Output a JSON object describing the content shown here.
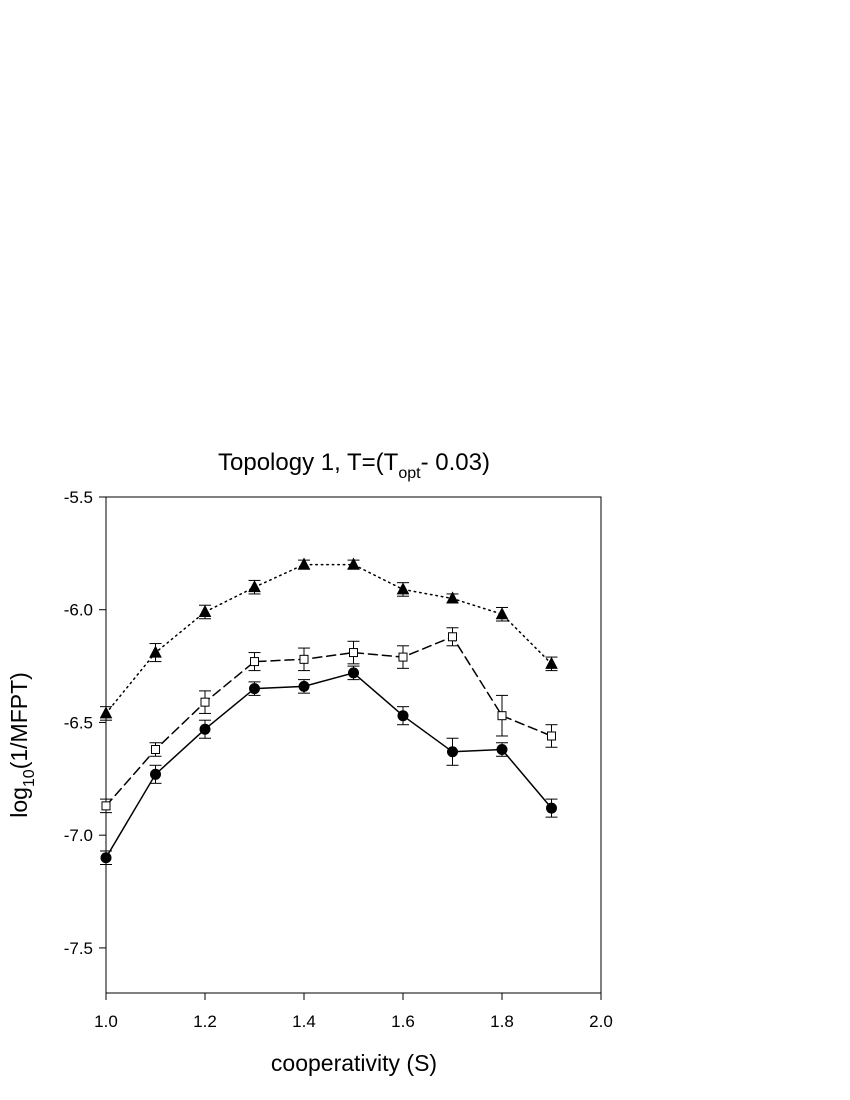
{
  "chart_data": {
    "type": "line",
    "title": {
      "main": "Topology 1, T=(T",
      "sub": "opt",
      "suffix": "- 0.03)"
    },
    "xlabel": "cooperativity (S)",
    "ylabel": {
      "main": "log",
      "sub": "10",
      "suffix": "(1/MFPT)"
    },
    "xlim": [
      1.0,
      2.0
    ],
    "ylim": [
      -7.7,
      -5.5
    ],
    "x_ticks": [
      1.0,
      1.2,
      1.4,
      1.6,
      1.8,
      2.0
    ],
    "x_tick_labels": [
      "1.0",
      "1.2",
      "1.4",
      "1.6",
      "1.8",
      "2.0"
    ],
    "y_ticks": [
      -5.5,
      -6.0,
      -6.5,
      -7.0,
      -7.5
    ],
    "y_tick_labels": [
      "-5.5",
      "-6.0",
      "-6.5",
      "-7.0",
      "-7.5"
    ],
    "grid": false,
    "x": [
      1.0,
      1.1,
      1.2,
      1.3,
      1.4,
      1.5,
      1.6,
      1.7,
      1.8,
      1.9
    ],
    "series": [
      {
        "marker": "triangle-filled",
        "line_style": "dotted",
        "values": [
          -6.46,
          -6.19,
          -6.01,
          -5.9,
          -5.8,
          -5.8,
          -5.91,
          -5.95,
          -6.02,
          -6.24
        ],
        "errors": [
          0.03,
          0.04,
          0.03,
          0.03,
          0.02,
          0.02,
          0.03,
          0.02,
          0.03,
          0.03
        ]
      },
      {
        "marker": "square-open",
        "line_style": "dashed",
        "values": [
          -6.87,
          -6.62,
          -6.41,
          -6.23,
          -6.22,
          -6.19,
          -6.21,
          -6.12,
          -6.47,
          -6.56
        ],
        "errors": [
          0.03,
          0.03,
          0.05,
          0.04,
          0.05,
          0.05,
          0.05,
          0.04,
          0.09,
          0.05
        ]
      },
      {
        "marker": "circle-filled",
        "line_style": "solid",
        "values": [
          -7.1,
          -6.73,
          -6.53,
          -6.35,
          -6.34,
          -6.28,
          -6.47,
          -6.63,
          -6.62,
          -6.88
        ],
        "errors": [
          0.03,
          0.04,
          0.04,
          0.03,
          0.03,
          0.03,
          0.04,
          0.06,
          0.03,
          0.04
        ]
      }
    ],
    "colors": {
      "line": "#000000",
      "background": "#ffffff"
    }
  }
}
